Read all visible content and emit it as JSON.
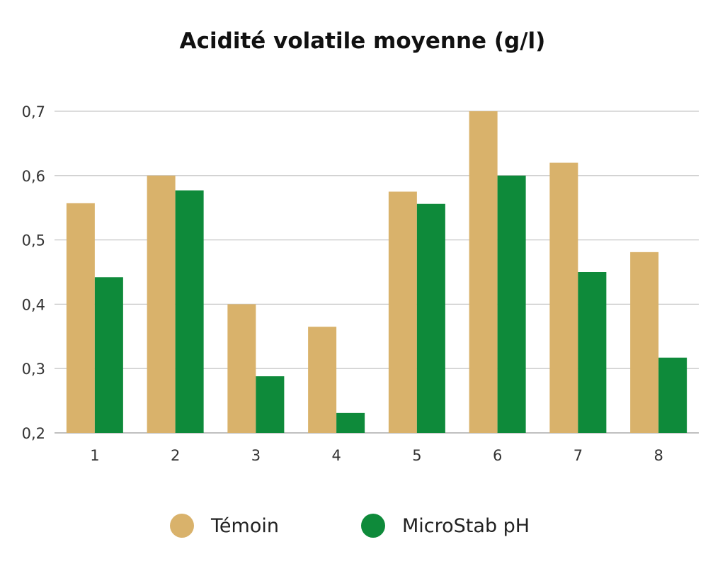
{
  "chart_data": {
    "type": "bar",
    "title": "Acidité volatile moyenne (g/l)",
    "xlabel": "",
    "ylabel": "",
    "categories": [
      "1",
      "2",
      "3",
      "4",
      "5",
      "6",
      "7",
      "8"
    ],
    "ylim": [
      0.2,
      0.7
    ],
    "yticks": [
      "0,2",
      "0,3",
      "0,4",
      "0,5",
      "0,6",
      "0,7"
    ],
    "ytick_values": [
      0.2,
      0.3,
      0.4,
      0.5,
      0.6,
      0.7
    ],
    "grid": true,
    "legend_position": "bottom",
    "series": [
      {
        "name": "Témoin",
        "color": "#D9B26B",
        "values": [
          0.557,
          0.6,
          0.4,
          0.365,
          0.575,
          0.7,
          0.62,
          0.481
        ]
      },
      {
        "name": "MicroStab pH",
        "color": "#0E8A3A",
        "values": [
          0.442,
          0.577,
          0.288,
          0.231,
          0.556,
          0.6,
          0.45,
          0.317
        ]
      }
    ]
  }
}
